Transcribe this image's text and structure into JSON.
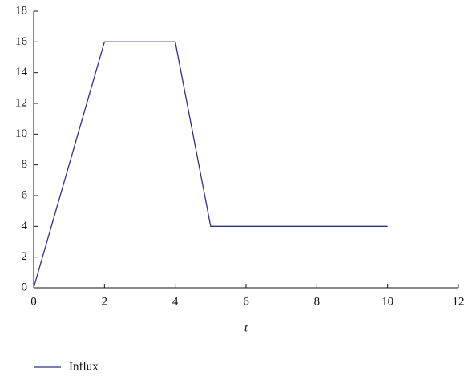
{
  "chart_data": {
    "type": "line",
    "xlabel": "t",
    "x": [
      0,
      2,
      4,
      5,
      10
    ],
    "series": [
      {
        "name": "Influx",
        "color": "#2e3182",
        "values": [
          0,
          16,
          16,
          4,
          4
        ]
      }
    ],
    "xlim": [
      0,
      12
    ],
    "xticks": [
      0,
      2,
      4,
      6,
      8,
      10,
      12
    ],
    "ylim": [
      0,
      18
    ],
    "yticks": [
      0,
      2,
      4,
      6,
      8,
      10,
      12,
      14,
      16,
      18
    ],
    "legend": "bottom-left"
  }
}
